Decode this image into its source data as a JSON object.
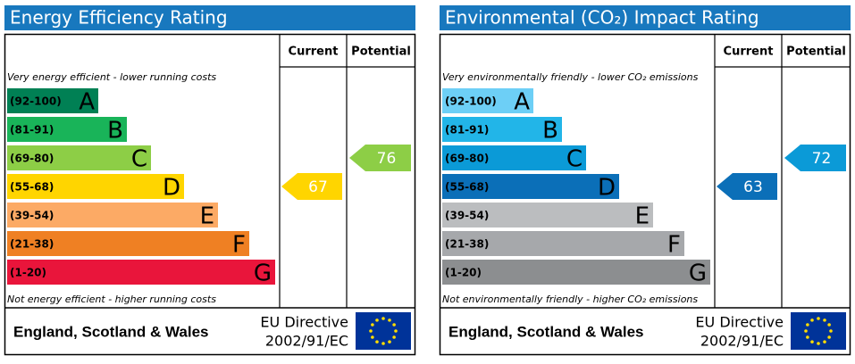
{
  "chart_data": [
    {
      "type": "epc",
      "title": "Energy Efficiency Rating",
      "columns": [
        "Current",
        "Potential"
      ],
      "top_note": "Very energy efficient - lower running costs",
      "bottom_note": "Not energy efficient - higher running costs",
      "bands": [
        {
          "range": "(92-100)",
          "letter": "A",
          "color": "#008054"
        },
        {
          "range": "(81-91)",
          "letter": "B",
          "color": "#19b459"
        },
        {
          "range": "(69-80)",
          "letter": "C",
          "color": "#8dce46"
        },
        {
          "range": "(55-68)",
          "letter": "D",
          "color": "#ffd500"
        },
        {
          "range": "(39-54)",
          "letter": "E",
          "color": "#fcaa65"
        },
        {
          "range": "(21-38)",
          "letter": "F",
          "color": "#ef8023"
        },
        {
          "range": "(1-20)",
          "letter": "G",
          "color": "#e9153b"
        }
      ],
      "current": 67,
      "potential": 76,
      "footer": "England, Scotland & Wales",
      "directive": [
        "EU Directive",
        "2002/91/EC"
      ]
    },
    {
      "type": "epc",
      "title": "Environmental (CO₂) Impact Rating",
      "columns": [
        "Current",
        "Potential"
      ],
      "top_note": "Very environmentally friendly - lower CO₂ emissions",
      "bottom_note": "Not environmentally friendly - higher CO₂ emissions",
      "bands": [
        {
          "range": "(92-100)",
          "letter": "A",
          "color": "#6dcff6"
        },
        {
          "range": "(81-91)",
          "letter": "B",
          "color": "#22b5e8"
        },
        {
          "range": "(69-80)",
          "letter": "C",
          "color": "#0b9ad7"
        },
        {
          "range": "(55-68)",
          "letter": "D",
          "color": "#0b6fb8"
        },
        {
          "range": "(39-54)",
          "letter": "E",
          "color": "#bbbdbf"
        },
        {
          "range": "(21-38)",
          "letter": "F",
          "color": "#a6a8ab"
        },
        {
          "range": "(1-20)",
          "letter": "G",
          "color": "#8c8e90"
        }
      ],
      "current": 63,
      "potential": 72,
      "footer": "England, Scotland & Wales",
      "directive": [
        "EU Directive",
        "2002/91/EC"
      ]
    }
  ]
}
